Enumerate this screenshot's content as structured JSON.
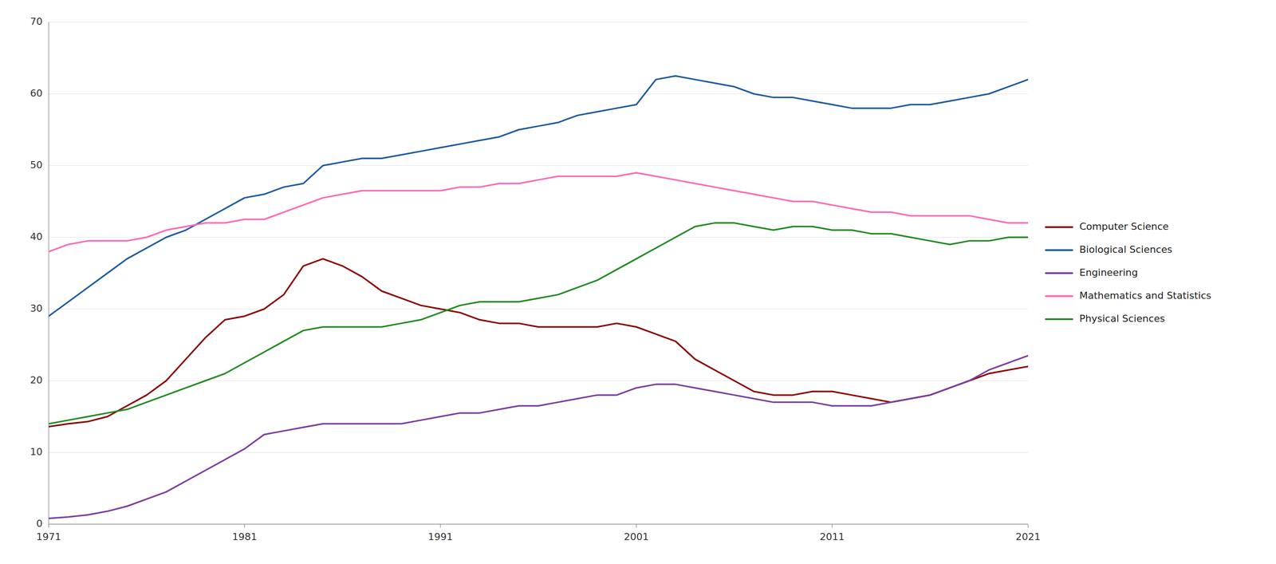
{
  "chart_data": {
    "type": "line",
    "x": [
      1971,
      1972,
      1973,
      1974,
      1975,
      1976,
      1977,
      1978,
      1979,
      1980,
      1981,
      1982,
      1983,
      1984,
      1985,
      1986,
      1987,
      1988,
      1989,
      1990,
      1991,
      1992,
      1993,
      1994,
      1995,
      1996,
      1997,
      1998,
      1999,
      2000,
      2001,
      2002,
      2003,
      2004,
      2005,
      2006,
      2007,
      2008,
      2009,
      2010,
      2011,
      2012,
      2013,
      2014,
      2015,
      2016,
      2017,
      2018,
      2019,
      2020,
      2021
    ],
    "series": [
      {
        "name": "Computer Science",
        "color": "#8B0000",
        "values": [
          13.6,
          14.0,
          14.3,
          15.0,
          16.5,
          18.0,
          20.0,
          23.0,
          26.0,
          28.5,
          29.0,
          30.0,
          32.0,
          36.0,
          37.0,
          36.0,
          34.5,
          32.5,
          31.5,
          30.5,
          30.0,
          29.5,
          28.5,
          28.0,
          28.0,
          27.5,
          27.5,
          27.5,
          27.5,
          28.0,
          27.5,
          26.5,
          25.5,
          23.0,
          21.5,
          20.0,
          18.5,
          18.0,
          18.0,
          18.5,
          18.5,
          18.0,
          17.5,
          17.0,
          17.5,
          18.0,
          19.0,
          20.0,
          21.0,
          21.5,
          22.0
        ]
      },
      {
        "name": "Biological Sciences",
        "color": "#1F5C9E",
        "values": [
          29.0,
          31.0,
          33.0,
          35.0,
          37.0,
          38.5,
          40.0,
          41.0,
          42.5,
          44.0,
          45.5,
          46.0,
          47.0,
          47.5,
          50.0,
          50.5,
          51.0,
          51.0,
          51.5,
          52.0,
          52.5,
          53.0,
          53.5,
          54.0,
          55.0,
          55.5,
          56.0,
          57.0,
          57.5,
          58.0,
          58.5,
          62.0,
          62.5,
          62.0,
          61.5,
          61.0,
          60.0,
          59.5,
          59.5,
          59.0,
          58.5,
          58.0,
          58.0,
          58.0,
          58.5,
          58.5,
          59.0,
          59.5,
          60.0,
          61.0,
          62.0
        ]
      },
      {
        "name": "Engineering",
        "color": "#7B3FA0",
        "values": [
          0.8,
          1.0,
          1.3,
          1.8,
          2.5,
          3.5,
          4.5,
          6.0,
          7.5,
          9.0,
          10.5,
          12.5,
          13.0,
          13.5,
          14.0,
          14.0,
          14.0,
          14.0,
          14.0,
          14.5,
          15.0,
          15.5,
          15.5,
          16.0,
          16.5,
          16.5,
          17.0,
          17.5,
          18.0,
          18.0,
          19.0,
          19.5,
          19.5,
          19.0,
          18.5,
          18.0,
          17.5,
          17.0,
          17.0,
          17.0,
          16.5,
          16.5,
          16.5,
          17.0,
          17.5,
          18.0,
          19.0,
          20.0,
          21.5,
          22.5,
          23.5
        ]
      },
      {
        "name": "Mathematics and Statistics",
        "color": "#FF69B4",
        "values": [
          38.0,
          39.0,
          39.5,
          39.5,
          39.5,
          40.0,
          41.0,
          41.5,
          42.0,
          42.0,
          42.5,
          42.5,
          43.5,
          44.5,
          45.5,
          46.0,
          46.5,
          46.5,
          46.5,
          46.5,
          46.5,
          47.0,
          47.0,
          47.5,
          47.5,
          48.0,
          48.5,
          48.5,
          48.5,
          48.5,
          49.0,
          48.5,
          48.0,
          47.5,
          47.0,
          46.5,
          46.0,
          45.5,
          45.0,
          45.0,
          44.5,
          44.0,
          43.5,
          43.5,
          43.0,
          43.0,
          43.0,
          43.0,
          42.5,
          42.0,
          42.0
        ]
      },
      {
        "name": "Physical Sciences",
        "color": "#228B22",
        "values": [
          14.0,
          14.5,
          15.0,
          15.5,
          16.0,
          17.0,
          18.0,
          19.0,
          20.0,
          21.0,
          22.5,
          24.0,
          25.5,
          27.0,
          27.5,
          27.5,
          27.5,
          27.5,
          28.0,
          28.5,
          29.5,
          30.5,
          31.0,
          31.0,
          31.0,
          31.5,
          32.0,
          33.0,
          34.0,
          35.5,
          37.0,
          38.5,
          40.0,
          41.5,
          42.0,
          42.0,
          41.5,
          41.0,
          41.5,
          41.5,
          41.0,
          41.0,
          40.5,
          40.5,
          40.0,
          39.5,
          39.0,
          39.5,
          39.5,
          40.0,
          40.0
        ]
      }
    ],
    "xlim": [
      1971,
      2021
    ],
    "xticks": [
      1971,
      1981,
      1991,
      2001,
      2011,
      2021
    ],
    "ylim": [
      0,
      70
    ],
    "yticks": [
      0,
      10,
      20,
      30,
      40,
      50,
      60,
      70
    ],
    "grid": "y",
    "legend": "right"
  }
}
